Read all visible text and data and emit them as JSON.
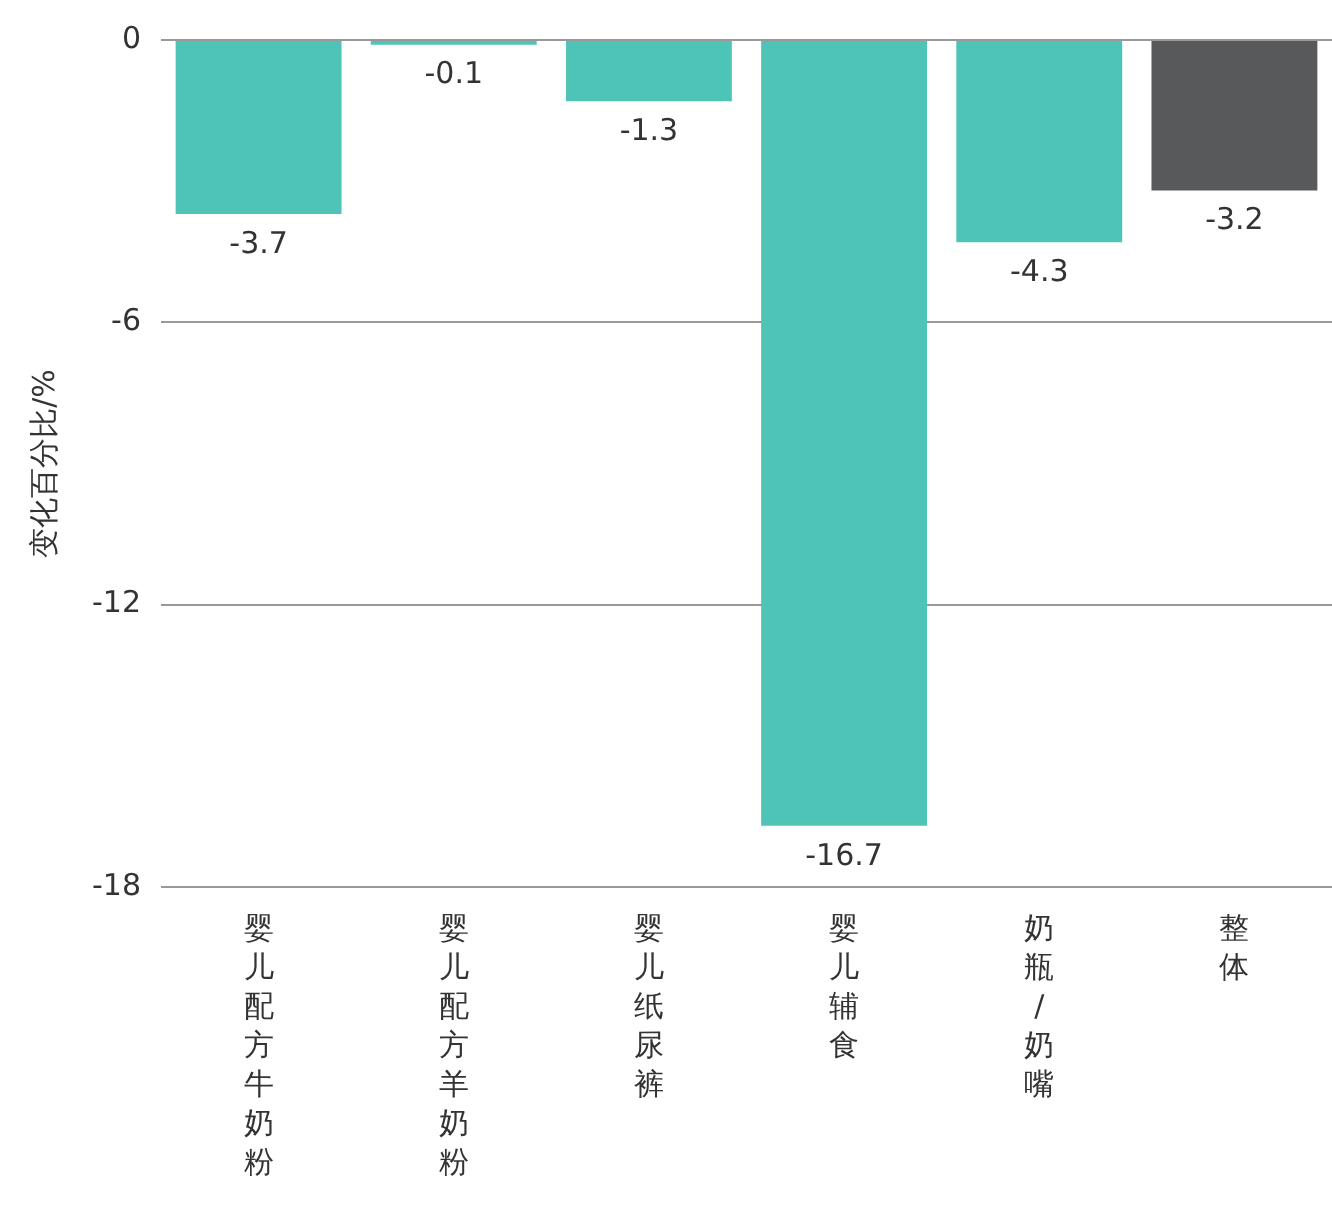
{
  "chart_data": {
    "type": "bar",
    "ylabel": "变化百分比/%",
    "categories": [
      "婴儿配方牛奶粉",
      "婴儿配方羊奶粉",
      "婴儿纸尿裤",
      "婴儿辅食",
      "奶瓶/奶嘴",
      "整体"
    ],
    "values": [
      -3.7,
      -0.1,
      -1.3,
      -16.7,
      -4.3,
      -3.2
    ],
    "colors": [
      "#4dc4b5",
      "#4dc4b5",
      "#4dc4b5",
      "#4dc4b5",
      "#4dc4b5",
      "#58595b"
    ],
    "ylim": [
      -18,
      0
    ],
    "yticks": [
      0,
      -6,
      -12,
      -18
    ],
    "grid": "y",
    "data_labels": true,
    "legend": false
  }
}
